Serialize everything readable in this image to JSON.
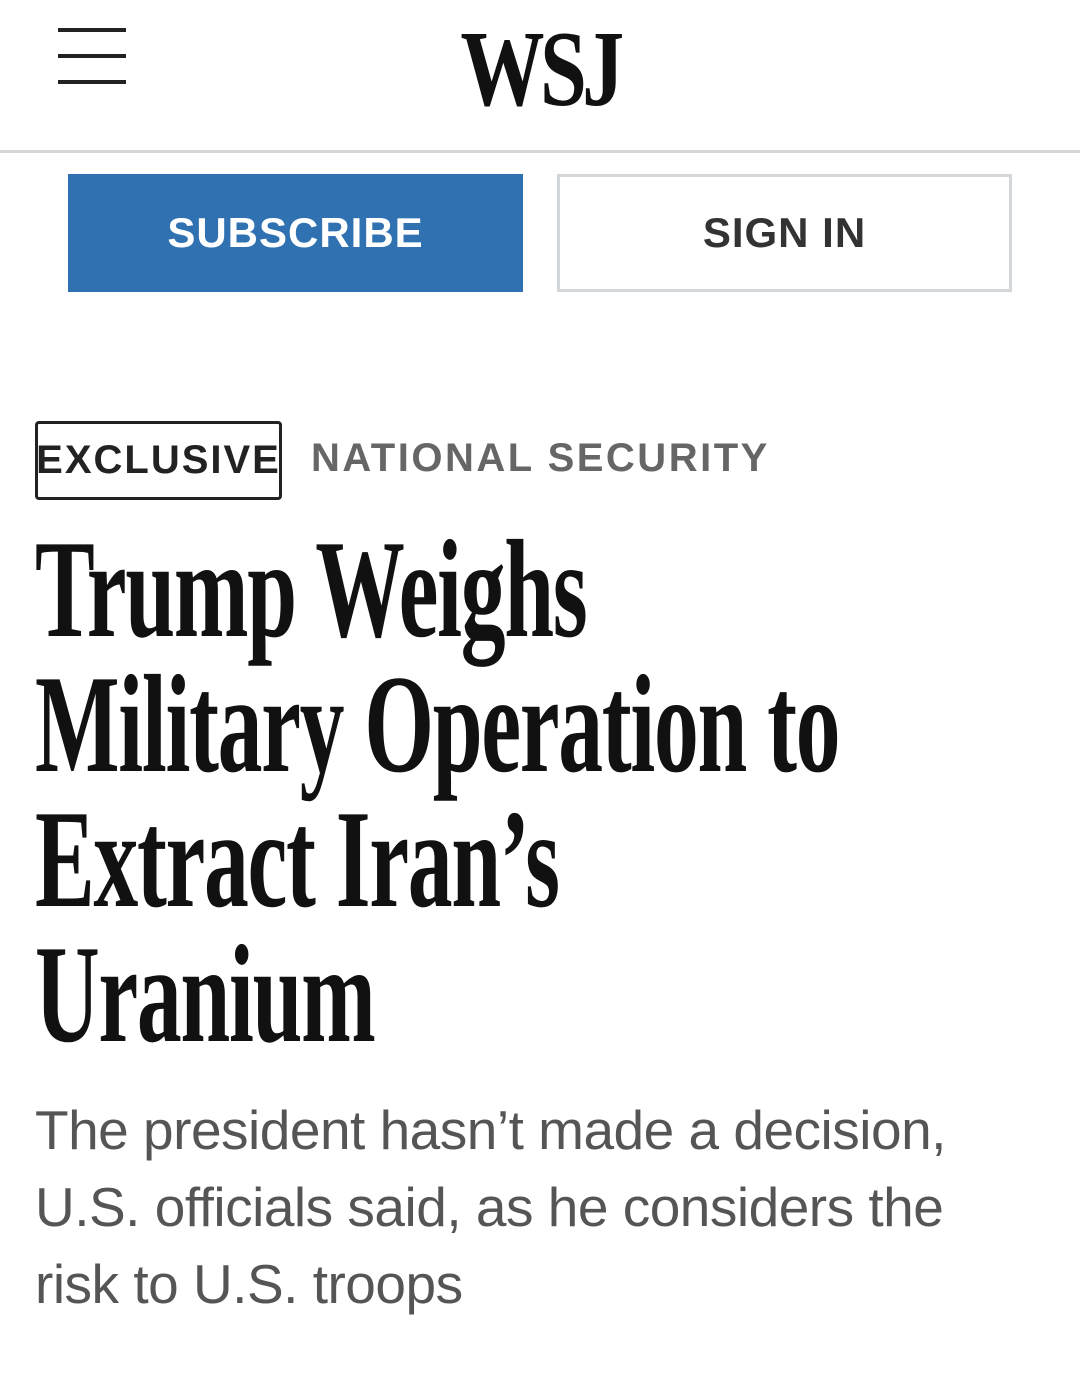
{
  "header": {
    "logo": "WSJ",
    "menu_icon": "hamburger-icon"
  },
  "actions": {
    "subscribe_label": "SUBSCRIBE",
    "signin_label": "SIGN IN",
    "subscribe_color": "#3071b2"
  },
  "article": {
    "badge": "EXCLUSIVE",
    "section": "NATIONAL SECURITY",
    "headline_lines": [
      "Trump Weighs",
      "Military Operation to",
      "Extract Iran’s",
      "Uranium"
    ],
    "dek_lines": [
      "The president hasn’t made a decision,",
      "U.S. officials said, as he considers the",
      "risk to U.S. troops"
    ]
  }
}
